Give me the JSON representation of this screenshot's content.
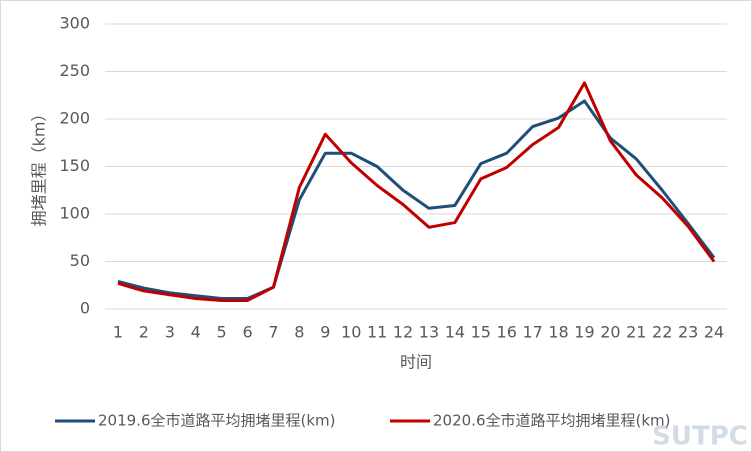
{
  "chart_data": {
    "type": "line",
    "y_label": "拥堵里程（km）",
    "x_label": "时间",
    "watermark": "SUTPC",
    "categories": [
      "1",
      "2",
      "3",
      "4",
      "5",
      "6",
      "7",
      "8",
      "9",
      "10",
      "11",
      "12",
      "13",
      "14",
      "15",
      "16",
      "17",
      "18",
      "19",
      "20",
      "21",
      "22",
      "23",
      "24"
    ],
    "series": [
      {
        "name": "2019.6全市道路平均拥堵里程(km)",
        "color": "#1f4e79",
        "values": [
          29,
          22,
          17,
          14,
          11,
          11,
          23,
          115,
          164,
          164,
          150,
          125,
          106,
          109,
          153,
          164,
          192,
          201,
          219,
          180,
          158,
          125,
          90,
          54
        ]
      },
      {
        "name": "2020.6全市道路平均拥堵里程(km)",
        "color": "#c00000",
        "values": [
          27,
          19,
          15,
          11,
          9,
          9,
          23,
          128,
          184,
          154,
          130,
          110,
          86,
          91,
          137,
          149,
          173,
          191,
          238,
          177,
          141,
          117,
          87,
          50
        ]
      }
    ],
    "ylim": [
      0,
      300
    ],
    "yticks": [
      0,
      50,
      100,
      150,
      200,
      250,
      300
    ],
    "grid": true,
    "legend": "bottom"
  }
}
